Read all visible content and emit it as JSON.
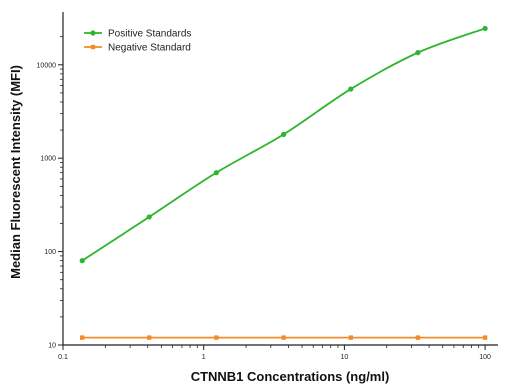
{
  "chart_data": {
    "type": "line",
    "xscale": "log",
    "yscale": "log",
    "xlim": [
      0.1,
      100
    ],
    "ylim": [
      10,
      30000
    ],
    "xlabel": "CTNNB1 Concentrations (ng/ml)",
    "ylabel": "Median Fluorescent Intensity (MFI)",
    "x_ticks": [
      0.1,
      1,
      10,
      100
    ],
    "x_tick_labels": [
      "0.1",
      "1",
      "10",
      "100"
    ],
    "y_ticks": [
      10,
      100,
      1000,
      10000
    ],
    "y_tick_labels": [
      "10",
      "100",
      "1000",
      "10000"
    ],
    "grid": false,
    "legend_position": "top-left",
    "series": [
      {
        "name": "Positive Standards",
        "color": "#2db52d",
        "marker": "circle",
        "x": [
          0.137,
          0.41,
          1.23,
          3.7,
          11.1,
          33.3,
          100
        ],
        "y": [
          80,
          235,
          700,
          1800,
          5500,
          13500,
          24500
        ]
      },
      {
        "name": "Negative Standard",
        "color": "#f28c28",
        "marker": "square",
        "x": [
          0.137,
          0.41,
          1.23,
          3.7,
          11.1,
          33.3,
          100
        ],
        "y": [
          12,
          12,
          12,
          12,
          12,
          12,
          12
        ]
      }
    ]
  }
}
